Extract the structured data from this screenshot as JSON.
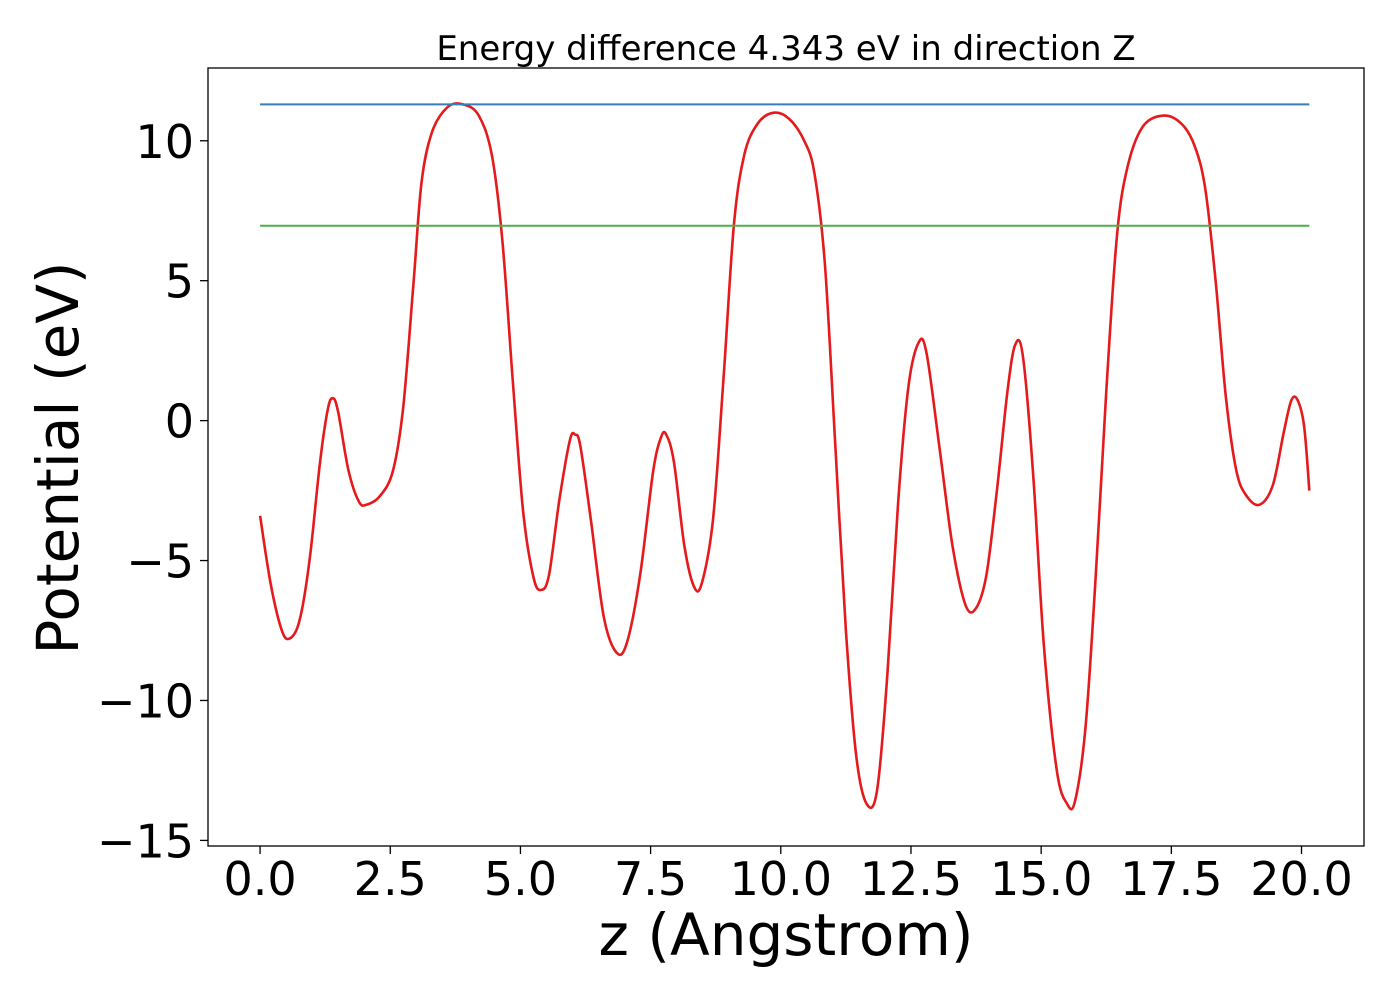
{
  "chart_data": {
    "type": "line",
    "title": "Energy difference 4.343 eV in direction Z",
    "xlabel": "z (Angstrom)",
    "ylabel": "Potential (eV)",
    "xlim": [
      -1.0,
      21.2
    ],
    "ylim": [
      -15.2,
      12.6
    ],
    "xticks": [
      0.0,
      2.5,
      5.0,
      7.5,
      10.0,
      12.5,
      15.0,
      17.5,
      20.0
    ],
    "xtick_labels": [
      "0.0",
      "2.5",
      "5.0",
      "7.5",
      "10.0",
      "12.5",
      "15.0",
      "17.5",
      "20.0"
    ],
    "yticks": [
      -15,
      -10,
      -5,
      0,
      5,
      10
    ],
    "ytick_labels": [
      "−15",
      "−10",
      "−5",
      "0",
      "5",
      "10"
    ],
    "grid": false,
    "series": [
      {
        "color": "#e41a1c",
        "kind": "curve",
        "points": [
          [
            0.0,
            -3.4
          ],
          [
            0.2,
            -5.8
          ],
          [
            0.4,
            -7.4
          ],
          [
            0.55,
            -7.8
          ],
          [
            0.75,
            -7.2
          ],
          [
            0.95,
            -5.0
          ],
          [
            1.15,
            -1.5
          ],
          [
            1.3,
            0.4
          ],
          [
            1.4,
            0.8
          ],
          [
            1.5,
            0.3
          ],
          [
            1.7,
            -1.8
          ],
          [
            1.9,
            -2.9
          ],
          [
            2.05,
            -3.0
          ],
          [
            2.3,
            -2.7
          ],
          [
            2.55,
            -1.8
          ],
          [
            2.75,
            0.5
          ],
          [
            2.95,
            5.0
          ],
          [
            3.1,
            8.5
          ],
          [
            3.3,
            10.3
          ],
          [
            3.6,
            11.2
          ],
          [
            3.9,
            11.3
          ],
          [
            4.2,
            10.9
          ],
          [
            4.45,
            9.5
          ],
          [
            4.65,
            6.5
          ],
          [
            4.85,
            1.5
          ],
          [
            5.05,
            -3.2
          ],
          [
            5.25,
            -5.6
          ],
          [
            5.4,
            -6.05
          ],
          [
            5.55,
            -5.5
          ],
          [
            5.75,
            -2.8
          ],
          [
            5.95,
            -0.7
          ],
          [
            6.05,
            -0.5
          ],
          [
            6.15,
            -0.9
          ],
          [
            6.35,
            -3.5
          ],
          [
            6.6,
            -7.0
          ],
          [
            6.85,
            -8.3
          ],
          [
            7.05,
            -7.9
          ],
          [
            7.3,
            -5.5
          ],
          [
            7.55,
            -1.8
          ],
          [
            7.7,
            -0.6
          ],
          [
            7.8,
            -0.5
          ],
          [
            7.95,
            -1.5
          ],
          [
            8.15,
            -4.5
          ],
          [
            8.35,
            -6.0
          ],
          [
            8.5,
            -5.7
          ],
          [
            8.7,
            -3.5
          ],
          [
            8.9,
            1.5
          ],
          [
            9.1,
            7.0
          ],
          [
            9.3,
            9.5
          ],
          [
            9.55,
            10.6
          ],
          [
            9.85,
            11.0
          ],
          [
            10.15,
            10.8
          ],
          [
            10.45,
            10.0
          ],
          [
            10.65,
            8.8
          ],
          [
            10.85,
            5.5
          ],
          [
            11.05,
            -1.0
          ],
          [
            11.25,
            -7.5
          ],
          [
            11.45,
            -12.0
          ],
          [
            11.65,
            -13.7
          ],
          [
            11.85,
            -13.2
          ],
          [
            12.05,
            -9.0
          ],
          [
            12.25,
            -3.0
          ],
          [
            12.45,
            1.2
          ],
          [
            12.65,
            2.8
          ],
          [
            12.8,
            2.4
          ],
          [
            13.05,
            -1.0
          ],
          [
            13.3,
            -4.5
          ],
          [
            13.55,
            -6.6
          ],
          [
            13.75,
            -6.7
          ],
          [
            13.95,
            -5.5
          ],
          [
            14.15,
            -2.5
          ],
          [
            14.35,
            1.0
          ],
          [
            14.5,
            2.7
          ],
          [
            14.65,
            2.3
          ],
          [
            14.85,
            -2.0
          ],
          [
            15.05,
            -8.0
          ],
          [
            15.3,
            -12.5
          ],
          [
            15.5,
            -13.7
          ],
          [
            15.65,
            -13.6
          ],
          [
            15.85,
            -11.0
          ],
          [
            16.05,
            -5.5
          ],
          [
            16.25,
            1.0
          ],
          [
            16.45,
            6.5
          ],
          [
            16.65,
            9.0
          ],
          [
            16.95,
            10.5
          ],
          [
            17.35,
            10.9
          ],
          [
            17.7,
            10.6
          ],
          [
            17.95,
            9.8
          ],
          [
            18.15,
            8.3
          ],
          [
            18.35,
            5.0
          ],
          [
            18.55,
            0.8
          ],
          [
            18.75,
            -1.8
          ],
          [
            18.95,
            -2.7
          ],
          [
            19.2,
            -3.0
          ],
          [
            19.45,
            -2.3
          ],
          [
            19.65,
            -0.5
          ],
          [
            19.8,
            0.7
          ],
          [
            19.92,
            0.75
          ],
          [
            20.05,
            -0.2
          ],
          [
            20.15,
            -2.5
          ]
        ]
      },
      {
        "color": "#377eb8",
        "kind": "hline",
        "x": [
          0.0,
          20.15
        ],
        "y": 11.3
      },
      {
        "color": "#4daf4a",
        "kind": "hline",
        "x": [
          0.0,
          20.15
        ],
        "y": 6.96
      }
    ]
  }
}
